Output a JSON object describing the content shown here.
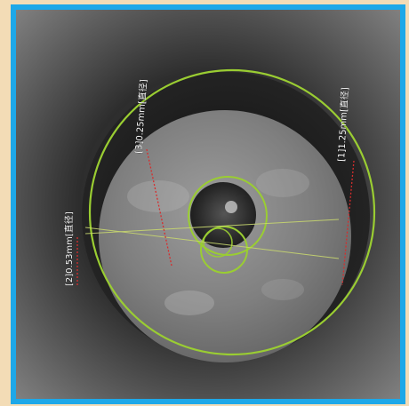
{
  "annotations": [
    {
      "id": "1",
      "text": "[1]1.25mm[直径]"
    },
    {
      "id": "2",
      "text": "[2]0.53mm[直径]"
    },
    {
      "id": "3",
      "text": "[3]0.25mm[直径]"
    }
  ],
  "colors": {
    "border": "#1ea8e8",
    "background": "#f3dcb6",
    "measurement_circle": "#9acd32",
    "measurement_line": "#d62d2d"
  }
}
